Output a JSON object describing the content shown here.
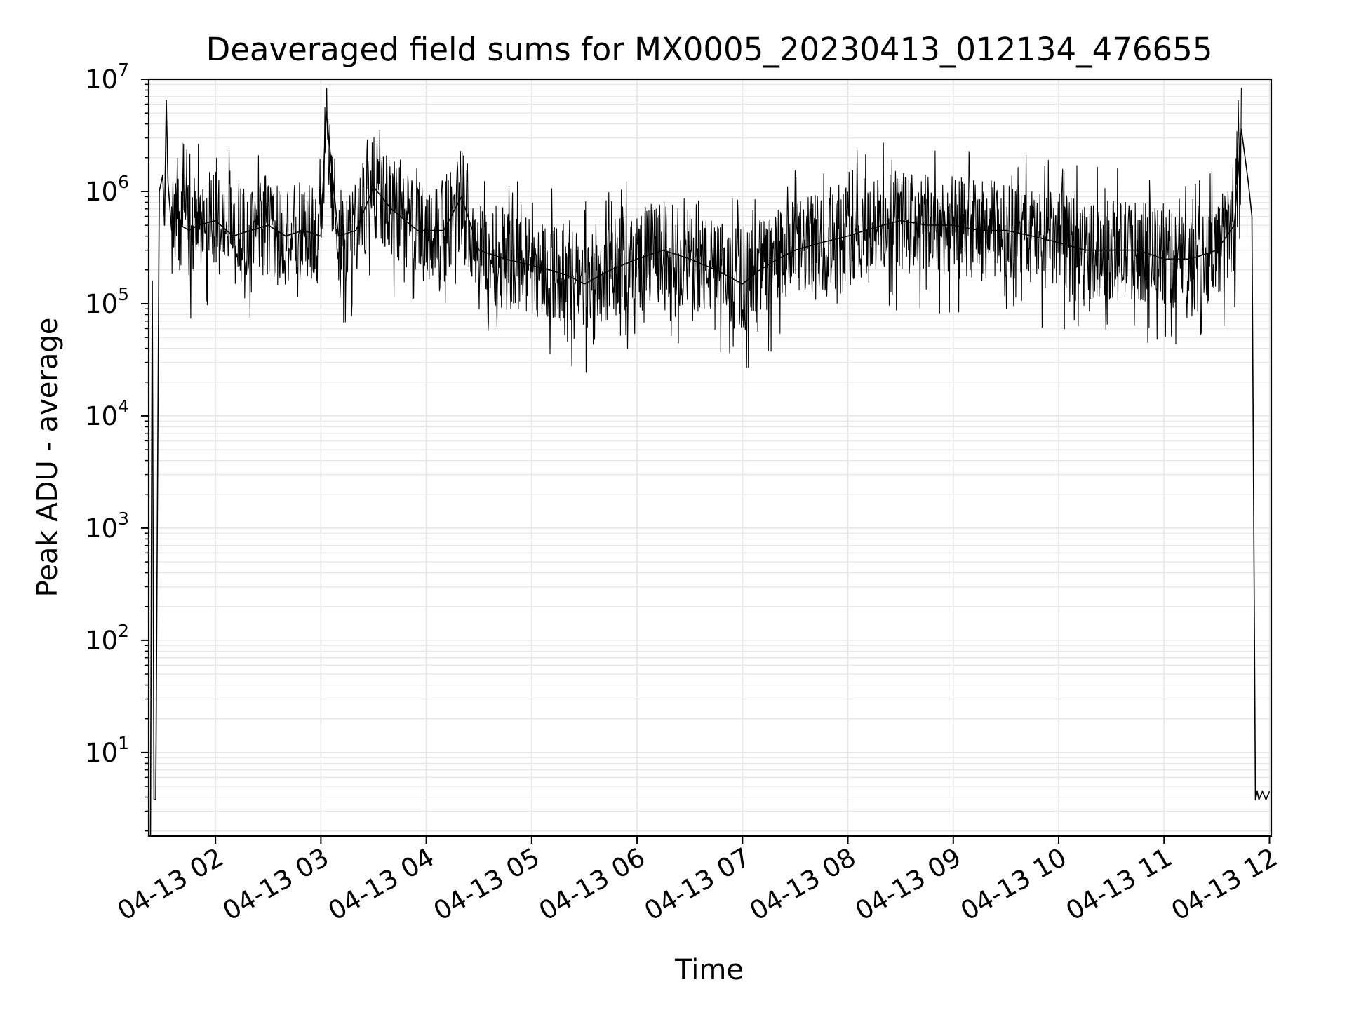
{
  "chart_data": {
    "type": "line",
    "title": "Deaveraged field sums for MX0005_20230413_012134_476655",
    "xlabel": "Time",
    "ylabel": "Peak ADU - average",
    "y_scale": "log",
    "ylim": [
      1.8,
      10000000
    ],
    "xlim": [
      "2023-04-13 01:22",
      "2023-04-13 12:01"
    ],
    "x_ticks": [
      {
        "t": "2023-04-13 02:00",
        "label": "04-13 02"
      },
      {
        "t": "2023-04-13 03:00",
        "label": "04-13 03"
      },
      {
        "t": "2023-04-13 04:00",
        "label": "04-13 04"
      },
      {
        "t": "2023-04-13 05:00",
        "label": "04-13 05"
      },
      {
        "t": "2023-04-13 06:00",
        "label": "04-13 06"
      },
      {
        "t": "2023-04-13 07:00",
        "label": "04-13 07"
      },
      {
        "t": "2023-04-13 08:00",
        "label": "04-13 08"
      },
      {
        "t": "2023-04-13 09:00",
        "label": "04-13 09"
      },
      {
        "t": "2023-04-13 10:00",
        "label": "04-13 10"
      },
      {
        "t": "2023-04-13 11:00",
        "label": "04-13 11"
      },
      {
        "t": "2023-04-13 12:00",
        "label": "04-13 12"
      }
    ],
    "y_ticks": [
      {
        "value": 10,
        "base": "10",
        "exp": "1"
      },
      {
        "value": 100,
        "base": "10",
        "exp": "2"
      },
      {
        "value": 1000,
        "base": "10",
        "exp": "3"
      },
      {
        "value": 10000,
        "base": "10",
        "exp": "4"
      },
      {
        "value": 100000,
        "base": "10",
        "exp": "5"
      },
      {
        "value": 1000000,
        "base": "10",
        "exp": "6"
      },
      {
        "value": 10000000,
        "base": "10",
        "exp": "7"
      }
    ],
    "grid": true,
    "line_color": "#000000",
    "grid_color": "#e6e6e6",
    "series": [
      {
        "x": [
          "2023-04-13 01:23",
          "2023-04-13 01:24",
          "2023-04-13 01:25",
          "2023-04-13 01:26",
          "2023-04-13 01:28",
          "2023-04-13 01:30",
          "2023-04-13 01:31",
          "2023-04-13 01:32",
          "2023-04-13 01:33",
          "2023-04-13 01:35",
          "2023-04-13 01:38",
          "2023-04-13 01:40",
          "2023-04-13 01:45",
          "2023-04-13 01:50",
          "2023-04-13 02:00",
          "2023-04-13 02:10",
          "2023-04-13 02:20",
          "2023-04-13 02:30",
          "2023-04-13 02:40",
          "2023-04-13 02:50",
          "2023-04-13 03:00",
          "2023-04-13 03:03",
          "2023-04-13 03:10",
          "2023-04-13 03:20",
          "2023-04-13 03:30",
          "2023-04-13 03:40",
          "2023-04-13 03:55",
          "2023-04-13 04:10",
          "2023-04-13 04:20",
          "2023-04-13 04:30",
          "2023-04-13 04:45",
          "2023-04-13 05:00",
          "2023-04-13 05:10",
          "2023-04-13 05:20",
          "2023-04-13 05:30",
          "2023-04-13 05:45",
          "2023-04-13 06:00",
          "2023-04-13 06:15",
          "2023-04-13 06:30",
          "2023-04-13 06:45",
          "2023-04-13 07:00",
          "2023-04-13 07:10",
          "2023-04-13 07:20",
          "2023-04-13 07:30",
          "2023-04-13 07:45",
          "2023-04-13 08:00",
          "2023-04-13 08:10",
          "2023-04-13 08:20",
          "2023-04-13 08:30",
          "2023-04-13 08:45",
          "2023-04-13 09:00",
          "2023-04-13 09:15",
          "2023-04-13 09:30",
          "2023-04-13 09:45",
          "2023-04-13 10:00",
          "2023-04-13 10:15",
          "2023-04-13 10:30",
          "2023-04-13 10:45",
          "2023-04-13 11:00",
          "2023-04-13 11:15",
          "2023-04-13 11:30",
          "2023-04-13 11:40",
          "2023-04-13 11:44",
          "2023-04-13 11:48",
          "2023-04-13 11:50",
          "2023-04-13 11:52",
          "2023-04-13 11:53",
          "2023-04-13 11:54",
          "2023-04-13 11:56",
          "2023-04-13 11:58",
          "2023-04-13 12:00"
        ],
        "y": [
          1.8,
          160000,
          3.8,
          3.8,
          1000000,
          1400000,
          500000,
          6500000,
          1200000,
          450000,
          800000,
          500000,
          450000,
          500000,
          550000,
          400000,
          450000,
          500000,
          400000,
          450000,
          400000,
          5200000,
          400000,
          450000,
          1100000,
          700000,
          450000,
          450000,
          900000,
          300000,
          250000,
          220000,
          200000,
          180000,
          150000,
          200000,
          250000,
          300000,
          250000,
          200000,
          150000,
          200000,
          250000,
          300000,
          350000,
          400000,
          450000,
          500000,
          550000,
          500000,
          500000,
          450000,
          450000,
          400000,
          350000,
          300000,
          300000,
          300000,
          250000,
          250000,
          300000,
          500000,
          3600000,
          1200000,
          600000,
          3.8,
          4.5,
          3.8,
          4.5,
          3.8,
          4.5
        ]
      }
    ]
  }
}
